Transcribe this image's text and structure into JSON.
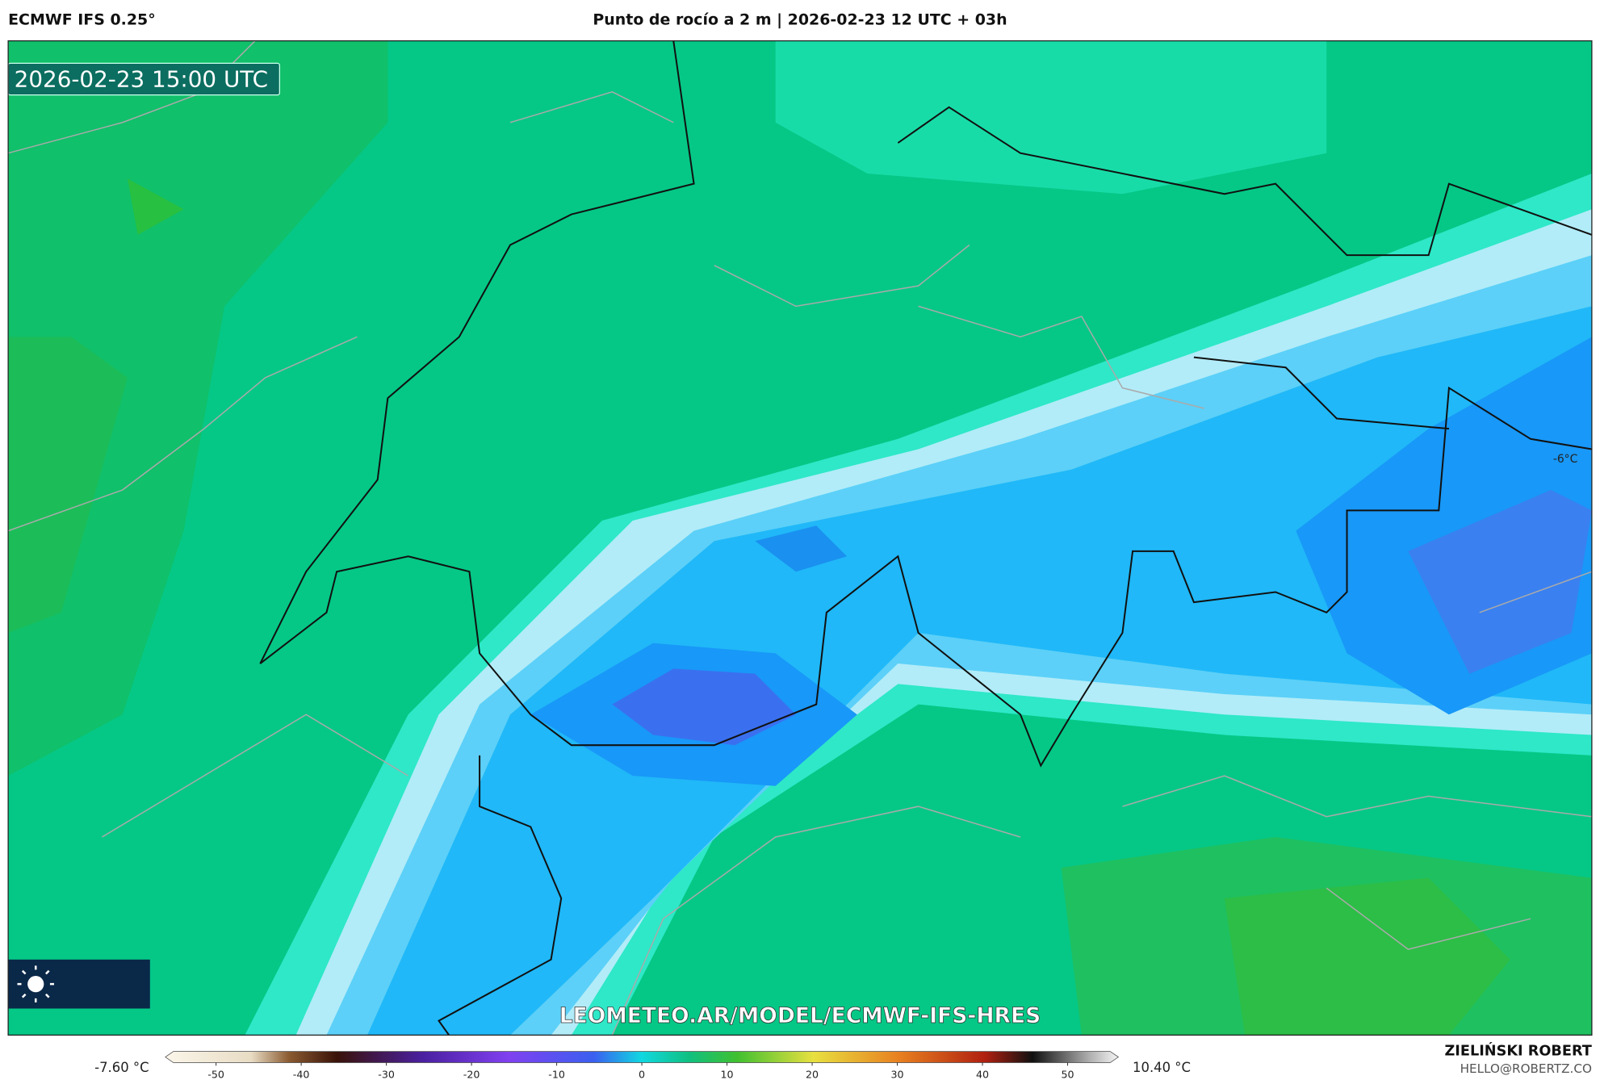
{
  "header": {
    "model": "ECMWF IFS 0.25°",
    "title": "Punto de rocío a 2 m | 2026-02-23 12 UTC + 03h"
  },
  "map": {
    "valid_time": "2026-02-23 15:00 UTC",
    "contour_label": "-6°C",
    "watermark": "LEOMETEO.AR/MODEL/ECMWF-IFS-HRES"
  },
  "colorbar": {
    "min_label": "-7.60 °C",
    "max_label": "10.40 °C",
    "lim": [
      -55,
      55
    ],
    "ticks": [
      -50,
      -40,
      -30,
      -20,
      -10,
      0,
      10,
      20,
      30,
      40,
      50
    ]
  },
  "footer": {
    "author": "ZIELIŃSKI ROBERT",
    "email": "HELLO@ROBERTZ.CO"
  }
}
